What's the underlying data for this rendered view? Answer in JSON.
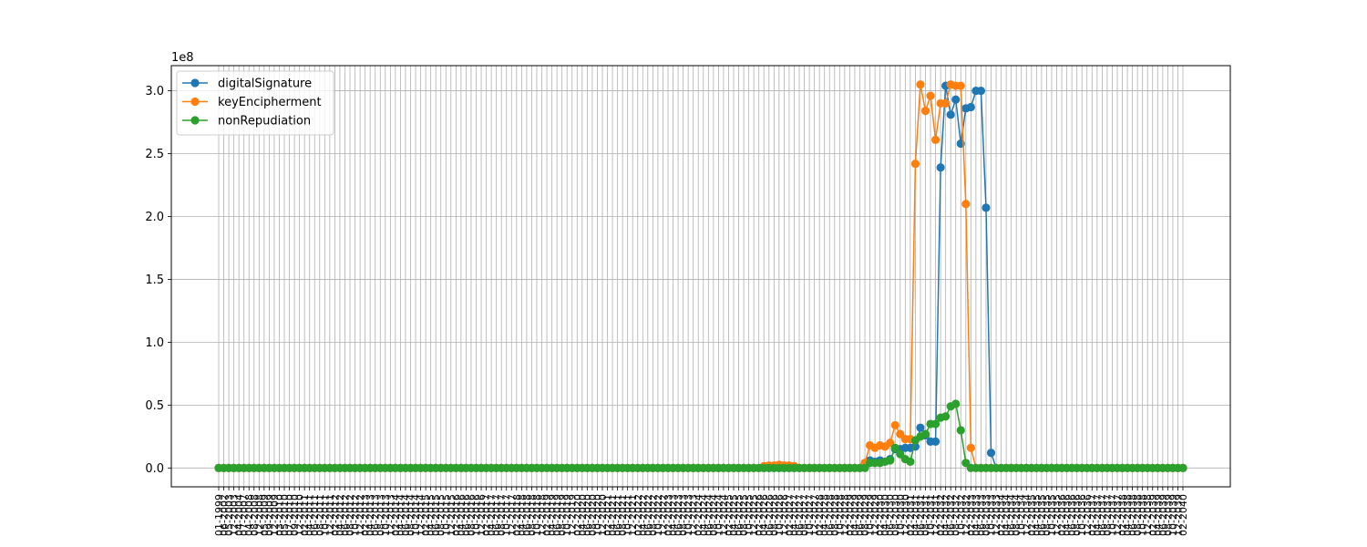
{
  "chart_data": {
    "type": "line",
    "title": "",
    "xlabel": "",
    "ylabel": "",
    "y_offset_label": "1e8",
    "ylim": [
      -0.15,
      3.2
    ],
    "yticks": [
      0.0,
      0.5,
      1.0,
      1.5,
      2.0,
      2.5,
      3.0
    ],
    "ytick_labels": [
      "0.0",
      "0.5",
      "1.0",
      "1.5",
      "2.0",
      "2.5",
      "3.0"
    ],
    "grid": true,
    "legend_position": "upper-left",
    "xtick_labels": [
      "01-1999",
      "06-2002",
      "05-2003",
      "12-2003",
      "04-2004",
      "07-2007",
      "04-2008",
      "08-2008",
      "12-2008",
      "05-2009",
      "09-2009",
      "12-2009",
      "03-2010",
      "05-2010",
      "07-2010",
      "09-2010",
      "12-2010",
      "02-2011",
      "04-2011",
      "06-2011",
      "08-2011",
      "10-2011",
      "12-2011",
      "02-2012",
      "04-2012",
      "06-2012",
      "08-2012",
      "10-2012",
      "12-2012",
      "02-2013",
      "04-2013",
      "06-2013",
      "08-2013",
      "10-2013",
      "12-2013",
      "02-2014",
      "04-2014",
      "06-2014",
      "08-2014",
      "10-2014",
      "12-2014",
      "02-2015",
      "04-2015",
      "06-2015",
      "08-2015",
      "10-2015",
      "12-2015",
      "02-2016",
      "04-2016",
      "06-2016",
      "08-2016",
      "10-2016",
      "12-2016",
      "02-2017",
      "04-2017",
      "06-2017",
      "08-2017",
      "10-2017",
      "12-2017",
      "02-2018",
      "04-2018",
      "06-2018",
      "08-2018",
      "10-2018",
      "12-2018",
      "02-2019",
      "04-2019",
      "06-2019",
      "08-2019",
      "10-2019",
      "12-2019",
      "02-2020",
      "04-2020",
      "06-2020",
      "08-2020",
      "10-2020",
      "12-2020",
      "02-2021",
      "04-2021",
      "06-2021",
      "08-2021",
      "10-2021",
      "12-2021",
      "02-2022",
      "04-2022",
      "06-2022",
      "08-2022",
      "10-2022",
      "12-2022",
      "02-2023",
      "04-2023",
      "06-2023",
      "08-2023",
      "10-2023",
      "12-2023",
      "02-2024",
      "04-2024",
      "06-2024",
      "08-2024",
      "10-2024",
      "12-2024",
      "02-2025",
      "04-2025",
      "06-2025",
      "08-2025",
      "10-2025",
      "12-2025",
      "02-2026",
      "04-2026",
      "06-2026",
      "08-2026",
      "10-2026",
      "12-2026",
      "02-2027",
      "04-2027",
      "06-2027",
      "08-2027",
      "10-2027",
      "12-2027",
      "02-2028",
      "04-2028",
      "06-2028",
      "08-2028",
      "10-2028",
      "12-2028",
      "02-2029",
      "04-2029",
      "06-2029",
      "08-2029",
      "10-2029",
      "12-2029",
      "02-2030",
      "04-2030",
      "06-2030",
      "08-2030",
      "10-2030",
      "12-2030",
      "02-2031",
      "04-2031",
      "06-2031",
      "08-2031",
      "10-2031",
      "12-2031",
      "02-2032",
      "04-2032",
      "06-2032",
      "08-2032",
      "10-2032",
      "12-2032",
      "02-2033",
      "04-2033",
      "06-2033",
      "08-2033",
      "10-2033",
      "12-2033",
      "02-2034",
      "04-2034",
      "06-2034",
      "08-2034",
      "10-2034",
      "12-2034",
      "02-2035",
      "04-2035",
      "06-2035",
      "08-2035",
      "10-2035",
      "12-2035",
      "02-2036",
      "04-2036",
      "06-2036",
      "08-2036",
      "10-2036",
      "12-2036",
      "02-2037",
      "04-2037",
      "06-2037",
      "08-2037",
      "10-2037",
      "12-2037",
      "02-2038",
      "04-2038",
      "06-2038",
      "08-2038",
      "10-2038",
      "12-2038",
      "02-2039",
      "04-2039",
      "06-2039",
      "08-2039",
      "10-2039",
      "12-2039",
      "02-2040"
    ],
    "series": [
      {
        "name": "digitalSignature",
        "color": "#1f77b4",
        "sparse_values": {
          "128": 0.04,
          "129": 0.06,
          "130": 0.05,
          "131": 0.06,
          "132": 0.05,
          "133": 0.07,
          "134": 0.15,
          "135": 0.15,
          "136": 0.16,
          "137": 0.16,
          "138": 0.17,
          "139": 0.32,
          "140": 0.26,
          "141": 0.21,
          "142": 0.21,
          "143": 2.39,
          "144": 3.04,
          "145": 2.81,
          "146": 2.93,
          "147": 2.58,
          "148": 2.86,
          "149": 2.87,
          "150": 3.0,
          "151": 3.0,
          "152": 2.07,
          "153": 0.12
        }
      },
      {
        "name": "keyEncipherment",
        "color": "#ff7f0e",
        "sparse_values": {
          "108": 0.015,
          "109": 0.02,
          "110": 0.02,
          "111": 0.025,
          "112": 0.02,
          "113": 0.02,
          "114": 0.015,
          "128": 0.04,
          "129": 0.18,
          "130": 0.16,
          "131": 0.18,
          "132": 0.17,
          "133": 0.2,
          "134": 0.34,
          "135": 0.27,
          "136": 0.23,
          "137": 0.23,
          "138": 2.42,
          "139": 3.05,
          "140": 2.84,
          "141": 2.96,
          "142": 2.61,
          "143": 2.9,
          "144": 2.9,
          "145": 3.05,
          "146": 3.04,
          "147": 3.04,
          "148": 2.1,
          "149": 0.16
        }
      },
      {
        "name": "nonRepudiation",
        "color": "#2ca02c",
        "sparse_values": {
          "129": 0.04,
          "130": 0.04,
          "131": 0.04,
          "132": 0.05,
          "133": 0.06,
          "134": 0.16,
          "135": 0.11,
          "136": 0.07,
          "137": 0.05,
          "138": 0.22,
          "139": 0.25,
          "140": 0.27,
          "141": 0.35,
          "142": 0.35,
          "143": 0.4,
          "144": 0.41,
          "145": 0.49,
          "146": 0.51,
          "147": 0.3,
          "148": 0.04,
          "149": 0.0
        }
      }
    ]
  }
}
